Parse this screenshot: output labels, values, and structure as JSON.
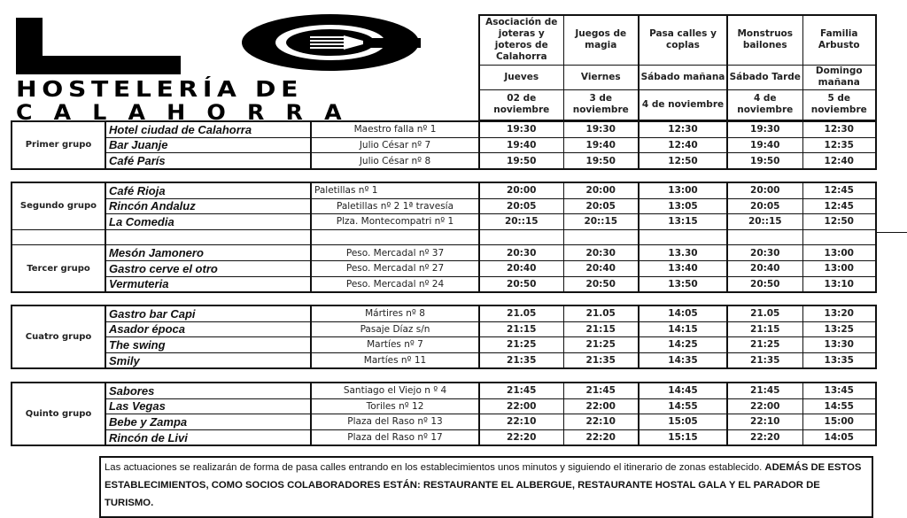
{
  "logo": {
    "line1": "HOSTELERÍA DE",
    "line2": "CALAHORRA"
  },
  "header": {
    "acts": [
      "Asociación de joteras y joteros de Calahorra",
      "Juegos de magia",
      "Pasa calles y coplas",
      "Monstruos bailones",
      "Familia Arbusto"
    ],
    "days": [
      "Jueves",
      "Viernes",
      "Sábado mañana",
      "Sábado Tarde",
      "Domingo mañana"
    ],
    "dates": [
      "02 de noviembre",
      "3 de noviembre",
      "4 de noviembre",
      "4 de noviembre",
      "5 de noviembre"
    ]
  },
  "blocks": [
    {
      "groups": [
        {
          "name": "Primer grupo",
          "rows": [
            {
              "venue": "Hotel ciudad de Calahorra",
              "address": "Maestro falla nº 1",
              "times": [
                "19:30",
                "19:30",
                "12:30",
                "19:30",
                "12:30"
              ]
            },
            {
              "venue": "Bar Juanje",
              "address": "Julio César nº 7",
              "times": [
                "19:40",
                "19:40",
                "12:40",
                "19:40",
                "12:35"
              ]
            },
            {
              "venue": "Café París",
              "address": "Julio César nº 8",
              "times": [
                "19:50",
                "19:50",
                "12:50",
                "19:50",
                "12:40"
              ]
            }
          ]
        }
      ]
    },
    {
      "groups": [
        {
          "name": "Segundo  grupo",
          "rows": [
            {
              "venue": " Café Rioja",
              "address": "Paletillas nº 1",
              "times": [
                "20:00",
                "20:00",
                "13:00",
                "20:00",
                "12:45"
              ]
            },
            {
              "venue": "Rincón Andaluz",
              "address": "Paletillas nº 2  1ª travesía",
              "times": [
                "20:05",
                "20:05",
                "13:05",
                "20:05",
                "12:45"
              ]
            },
            {
              "venue": "La Comedia",
              "address": "Plza. Montecompatri nº 1",
              "times": [
                "20::15",
                "20::15",
                "13:15",
                "20::15",
                "12:50"
              ]
            }
          ]
        },
        {
          "name": "",
          "rows": [
            {
              "venue": "",
              "address": "",
              "times": [
                "",
                "",
                "",
                "",
                ""
              ]
            }
          ]
        },
        {
          "name": "Tercer grupo",
          "rows": [
            {
              "venue": "Mesón Jamonero",
              "address": "Peso. Mercadal nº 37",
              "times": [
                "20:30",
                "20:30",
                "13.30",
                "20:30",
                "13:00"
              ]
            },
            {
              "venue": "Gastro cerve el otro",
              "address": "Peso. Mercadal nº 27",
              "times": [
                "20:40",
                "20:40",
                "13:40",
                "20:40",
                "13:00"
              ]
            },
            {
              "venue": "Vermuteria",
              "address": "Peso. Mercadal nº 24",
              "times": [
                "20:50",
                "20:50",
                "13:50",
                "20:50",
                "13:10"
              ]
            }
          ]
        }
      ]
    },
    {
      "groups": [
        {
          "name": "Cuatro grupo",
          "rows": [
            {
              "venue": "Gastro bar Capi",
              "address": "Mártires nº 8",
              "times": [
                "21.05",
                "21.05",
                "14:05",
                "21.05",
                "13:20"
              ]
            },
            {
              "venue": "Asador época",
              "address": "Pasaje Díaz s/n",
              "times": [
                "21:15",
                "21:15",
                "14:15",
                "21:15",
                "13:25"
              ]
            },
            {
              "venue": "The swing",
              "address": "Martíes nº 7",
              "times": [
                "21:25",
                "21:25",
                "14:25",
                "21:25",
                "13:30"
              ]
            },
            {
              "venue": "Smily",
              "address": "Martíes nº 11",
              "times": [
                "21:35",
                "21:35",
                "14:35",
                "21:35",
                "13:35"
              ]
            }
          ]
        }
      ]
    },
    {
      "groups": [
        {
          "name": "Quinto grupo",
          "rows": [
            {
              "venue": "Sabores",
              "address": "Santiago el Viejo n º 4",
              "times": [
                "21:45",
                "21:45",
                "14:45",
                "21:45",
                "13:45"
              ]
            },
            {
              "venue": "Las Vegas",
              "address": "Toriles nº 12",
              "times": [
                "22:00",
                "22:00",
                "14:55",
                "22:00",
                "14:55"
              ]
            },
            {
              "venue": "Bebe y Zampa",
              "address": "Plaza del Raso nº 13",
              "times": [
                "22:10",
                "22:10",
                "15:05",
                "22:10",
                "15:00"
              ]
            },
            {
              "venue": "Rincón de Livi",
              "address": "Plaza del Raso nº 17",
              "times": [
                "22:20",
                "22:20",
                "15:15",
                "22:20",
                "14:05"
              ]
            }
          ]
        }
      ]
    }
  ],
  "footer": {
    "text": "Las actuaciones se realizarán de forma de pasa calles entrando en los establecimientos unos minutos y siguiendo el itinerario de zonas establecido. ",
    "bold": "ADEMÁS DE ESTOS ESTABLECIMIENTOS, COMO SOCIOS COLABORADORES ESTÁN: RESTAURANTE EL ALBERGUE, RESTAURANTE HOSTAL GALA Y EL PARADOR DE TURISMO."
  }
}
